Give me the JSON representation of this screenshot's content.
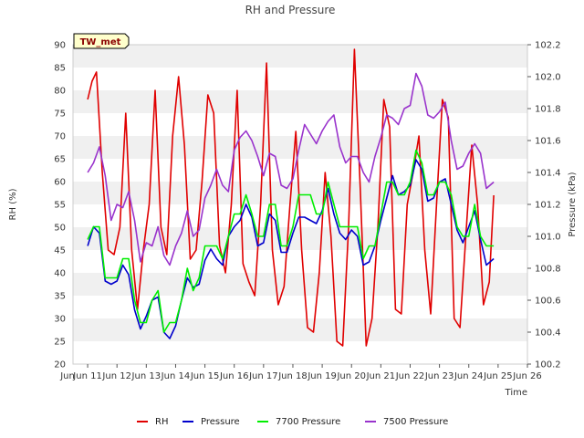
{
  "chart_data": {
    "type": "line",
    "title": "RH and Pressure",
    "badge": "TW_met",
    "xlabel": "Time",
    "ylabel_left": "RH (%)",
    "ylabel_right": "Pressure (kPa)",
    "x_ticks": [
      "Jun 11",
      "Jun 12",
      "Jun 13",
      "Jun 14",
      "Jun 15",
      "Jun 16",
      "Jun 17",
      "Jun 18",
      "Jun 19",
      "Jun 20",
      "Jun 21",
      "Jun 22",
      "Jun 23",
      "Jun 24",
      "Jun 25",
      "Jun 26"
    ],
    "xlim": [
      10.5,
      26
    ],
    "ylim_left": [
      20,
      90
    ],
    "y_ticks_left": [
      20,
      25,
      30,
      35,
      40,
      45,
      50,
      55,
      60,
      65,
      70,
      75,
      80,
      85,
      90
    ],
    "ylim_right": [
      100.2,
      102.2
    ],
    "y_ticks_right": [
      100.2,
      100.4,
      100.6,
      100.8,
      101.0,
      101.2,
      101.4,
      101.6,
      101.8,
      102.0,
      102.2
    ],
    "grid": "horizontal bands",
    "legend_position": "bottom",
    "series": [
      {
        "name": "RH",
        "axis": "left",
        "color": "#e00000",
        "x": [
          11.0,
          11.15,
          11.3,
          11.5,
          11.7,
          11.9,
          12.1,
          12.3,
          12.5,
          12.7,
          12.9,
          13.1,
          13.3,
          13.5,
          13.7,
          13.9,
          14.1,
          14.3,
          14.5,
          14.7,
          14.9,
          15.1,
          15.3,
          15.5,
          15.7,
          15.9,
          16.1,
          16.3,
          16.5,
          16.7,
          16.9,
          17.1,
          17.3,
          17.5,
          17.7,
          17.9,
          18.1,
          18.3,
          18.5,
          18.7,
          18.9,
          19.1,
          19.3,
          19.5,
          19.7,
          19.9,
          20.1,
          20.3,
          20.5,
          20.7,
          20.9,
          21.1,
          21.3,
          21.5,
          21.7,
          21.9,
          22.1,
          22.3,
          22.5,
          22.7,
          22.9,
          23.1,
          23.3,
          23.5,
          23.7,
          23.9,
          24.1,
          24.3,
          24.5,
          24.7,
          24.85
        ],
        "values": [
          78,
          82,
          84,
          62,
          45,
          44,
          50,
          75,
          45,
          32,
          45,
          55,
          80,
          50,
          44,
          70,
          83,
          68,
          43,
          45,
          60,
          79,
          75,
          46,
          40,
          55,
          80,
          42,
          38,
          35,
          55,
          86,
          45,
          33,
          37,
          55,
          71,
          45,
          28,
          27,
          40,
          62,
          48,
          25,
          24,
          50,
          89,
          58,
          24,
          30,
          50,
          78,
          72,
          32,
          31,
          55,
          62,
          70,
          45,
          31,
          55,
          78,
          74,
          30,
          28,
          48,
          68,
          55,
          33,
          38,
          57
        ]
      },
      {
        "name": "Pressure",
        "axis": "right",
        "color": "#0000cc",
        "x": [
          11.0,
          11.2,
          11.4,
          11.6,
          11.8,
          12.0,
          12.2,
          12.4,
          12.6,
          12.8,
          13.0,
          13.2,
          13.4,
          13.6,
          13.8,
          14.0,
          14.2,
          14.4,
          14.6,
          14.8,
          15.0,
          15.2,
          15.4,
          15.6,
          15.8,
          16.0,
          16.2,
          16.4,
          16.6,
          16.8,
          17.0,
          17.2,
          17.4,
          17.6,
          17.8,
          18.0,
          18.2,
          18.4,
          18.6,
          18.8,
          19.0,
          19.2,
          19.4,
          19.6,
          19.8,
          20.0,
          20.2,
          20.4,
          20.6,
          20.8,
          21.0,
          21.2,
          21.4,
          21.6,
          21.8,
          22.0,
          22.2,
          22.4,
          22.6,
          22.8,
          23.0,
          23.2,
          23.4,
          23.6,
          23.8,
          24.0,
          24.2,
          24.4,
          24.6,
          24.85
        ],
        "values": [
          100.94,
          101.06,
          101.02,
          100.72,
          100.7,
          100.72,
          100.82,
          100.76,
          100.54,
          100.42,
          100.5,
          100.6,
          100.62,
          100.4,
          100.36,
          100.44,
          100.6,
          100.74,
          100.68,
          100.7,
          100.85,
          100.92,
          100.86,
          100.82,
          101.0,
          101.06,
          101.1,
          101.2,
          101.12,
          100.94,
          100.96,
          101.14,
          101.1,
          100.9,
          100.9,
          101.02,
          101.12,
          101.12,
          101.1,
          101.08,
          101.16,
          101.3,
          101.14,
          101.02,
          100.98,
          101.04,
          101.0,
          100.82,
          100.84,
          100.94,
          101.1,
          101.24,
          101.38,
          101.26,
          101.28,
          101.32,
          101.48,
          101.42,
          101.22,
          101.24,
          101.34,
          101.36,
          101.2,
          101.04,
          100.96,
          101.06,
          101.16,
          100.98,
          100.82,
          100.86
        ]
      },
      {
        "name": "7700 Pressure",
        "axis": "right",
        "color": "#00ee00",
        "x": [
          11.0,
          11.2,
          11.4,
          11.6,
          11.8,
          12.0,
          12.2,
          12.4,
          12.6,
          12.8,
          13.0,
          13.2,
          13.4,
          13.6,
          13.8,
          14.0,
          14.2,
          14.4,
          14.6,
          14.8,
          15.0,
          15.2,
          15.4,
          15.6,
          15.8,
          16.0,
          16.2,
          16.4,
          16.6,
          16.8,
          17.0,
          17.2,
          17.4,
          17.6,
          17.8,
          18.0,
          18.2,
          18.4,
          18.6,
          18.8,
          19.0,
          19.2,
          19.4,
          19.6,
          19.8,
          20.0,
          20.2,
          20.4,
          20.6,
          20.8,
          21.0,
          21.2,
          21.4,
          21.6,
          21.8,
          22.0,
          22.2,
          22.4,
          22.6,
          22.8,
          23.0,
          23.2,
          23.4,
          23.6,
          23.8,
          24.0,
          24.2,
          24.4,
          24.6,
          24.85
        ],
        "values": [
          100.98,
          101.06,
          101.06,
          100.74,
          100.74,
          100.74,
          100.86,
          100.86,
          100.6,
          100.46,
          100.46,
          100.6,
          100.66,
          100.4,
          100.46,
          100.46,
          100.6,
          100.8,
          100.66,
          100.74,
          100.94,
          100.94,
          100.94,
          100.86,
          101.0,
          101.14,
          101.14,
          101.26,
          101.14,
          101.0,
          101.0,
          101.2,
          101.2,
          100.94,
          100.94,
          101.06,
          101.26,
          101.26,
          101.26,
          101.14,
          101.14,
          101.34,
          101.2,
          101.06,
          101.06,
          101.06,
          101.06,
          100.86,
          100.94,
          100.94,
          101.14,
          101.34,
          101.34,
          101.26,
          101.26,
          101.34,
          101.54,
          101.46,
          101.26,
          101.26,
          101.34,
          101.34,
          101.26,
          101.06,
          101.0,
          101.0,
          101.2,
          101.0,
          100.94,
          100.94
        ]
      },
      {
        "name": "7500 Pressure",
        "axis": "right",
        "color": "#9933cc",
        "x": [
          11.0,
          11.2,
          11.4,
          11.6,
          11.8,
          12.0,
          12.2,
          12.4,
          12.6,
          12.8,
          13.0,
          13.2,
          13.4,
          13.6,
          13.8,
          14.0,
          14.2,
          14.4,
          14.6,
          14.8,
          15.0,
          15.2,
          15.4,
          15.6,
          15.8,
          16.0,
          16.2,
          16.4,
          16.6,
          16.8,
          17.0,
          17.2,
          17.4,
          17.6,
          17.8,
          18.0,
          18.2,
          18.4,
          18.6,
          18.8,
          19.0,
          19.2,
          19.4,
          19.6,
          19.8,
          20.0,
          20.2,
          20.4,
          20.6,
          20.8,
          21.0,
          21.2,
          21.4,
          21.6,
          21.8,
          22.0,
          22.2,
          22.4,
          22.6,
          22.8,
          23.0,
          23.2,
          23.4,
          23.6,
          23.8,
          24.0,
          24.2,
          24.4,
          24.6,
          24.85
        ],
        "values": [
          101.4,
          101.46,
          101.56,
          101.38,
          101.1,
          101.2,
          101.18,
          101.28,
          101.1,
          100.84,
          100.96,
          100.94,
          101.06,
          100.88,
          100.82,
          100.94,
          101.02,
          101.16,
          101.0,
          101.04,
          101.24,
          101.32,
          101.42,
          101.32,
          101.28,
          101.54,
          101.62,
          101.66,
          101.6,
          101.5,
          101.38,
          101.52,
          101.5,
          101.32,
          101.3,
          101.36,
          101.54,
          101.7,
          101.64,
          101.58,
          101.66,
          101.72,
          101.76,
          101.56,
          101.46,
          101.5,
          101.5,
          101.4,
          101.34,
          101.5,
          101.62,
          101.76,
          101.74,
          101.7,
          101.8,
          101.82,
          102.02,
          101.94,
          101.76,
          101.74,
          101.78,
          101.84,
          101.6,
          101.42,
          101.44,
          101.52,
          101.58,
          101.52,
          101.3,
          101.34
        ]
      }
    ]
  }
}
